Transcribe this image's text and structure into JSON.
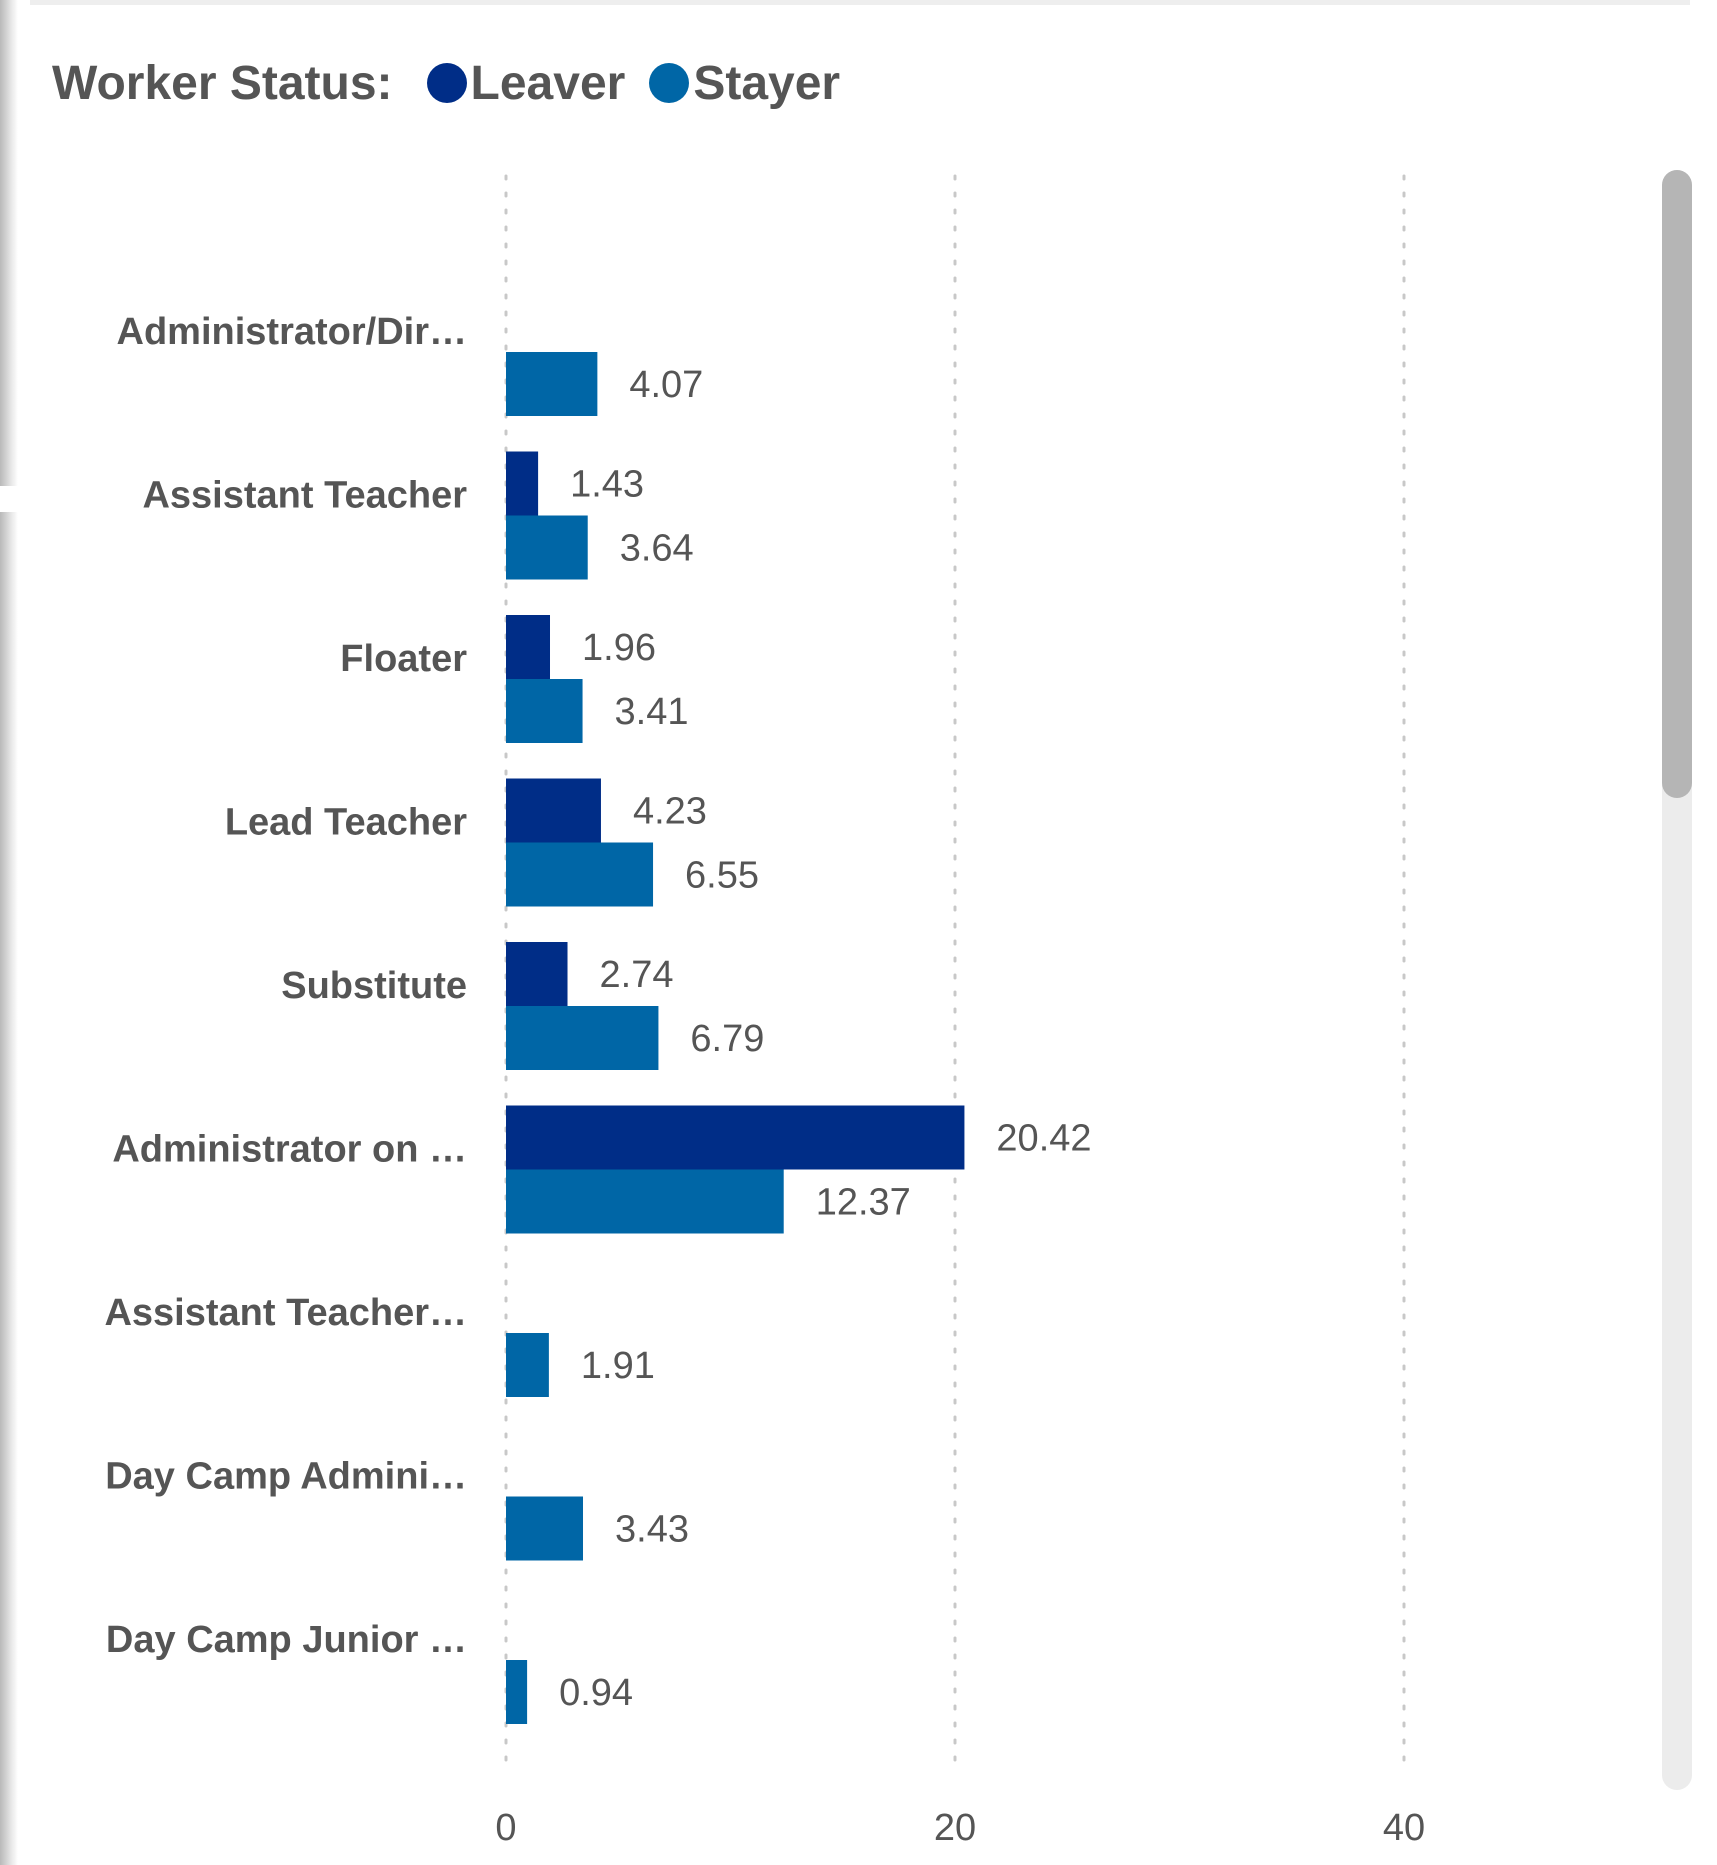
{
  "legend": {
    "title": "Worker Status:",
    "items": [
      {
        "label": "Leaver",
        "color": "#002d87"
      },
      {
        "label": "Stayer",
        "color": "#0066a6"
      }
    ]
  },
  "chart_data": {
    "type": "bar",
    "orientation": "horizontal",
    "categories": [
      "Administrator/Dir…",
      "Assistant Teacher",
      "Floater",
      "Lead Teacher",
      "Substitute",
      "Administrator on …",
      "Assistant Teacher…",
      "Day Camp Admini…",
      "Day Camp Junior …"
    ],
    "series": [
      {
        "name": "Leaver",
        "color": "#002d87",
        "values": [
          null,
          1.43,
          1.96,
          4.23,
          2.74,
          20.42,
          null,
          null,
          null
        ]
      },
      {
        "name": "Stayer",
        "color": "#0066a6",
        "values": [
          4.07,
          3.64,
          3.41,
          6.55,
          6.79,
          12.37,
          1.91,
          3.43,
          0.94
        ]
      }
    ],
    "xlim": [
      0,
      40
    ],
    "xticks": [
      "0",
      "20",
      "40"
    ],
    "grid": true,
    "legend_position": "top-left",
    "title": "",
    "xlabel": "",
    "ylabel": ""
  },
  "ui": {
    "scrollbar": "vertical-scrollbar"
  }
}
